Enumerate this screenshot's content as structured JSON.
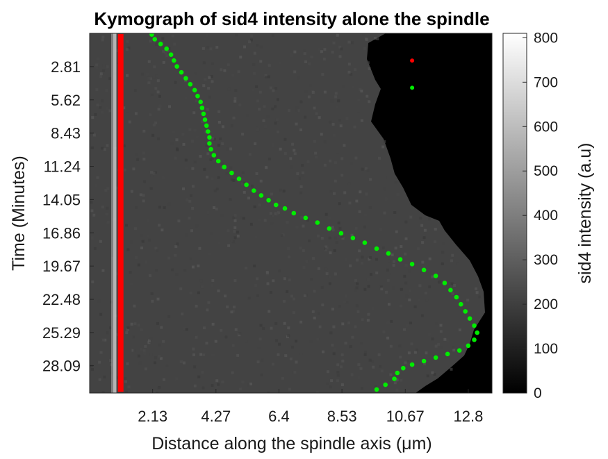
{
  "chart_data": {
    "type": "heatmap",
    "title": "Kymograph of sid4 intensity alone the spindle",
    "xlabel": "Distance along the spindle axis (μm)",
    "ylabel": "Time (Minutes)",
    "xlim": [
      0,
      13.6
    ],
    "ylim": [
      30.4,
      0
    ],
    "x_ticks": [
      "2.13",
      "4.27",
      "6.4",
      "8.53",
      "10.67",
      "12.8"
    ],
    "y_ticks": [
      "2.81",
      "5.62",
      "8.43",
      "11.24",
      "14.05",
      "16.86",
      "19.67",
      "22.48",
      "25.29",
      "28.09"
    ],
    "colorbar": {
      "label": "sid4 intensity (a.u)",
      "ticks": [
        "0",
        "100",
        "200",
        "300",
        "400",
        "500",
        "600",
        "700",
        "800"
      ],
      "range": [
        0,
        810
      ],
      "colormap": "gray"
    },
    "series": [
      {
        "color": "#ff0000",
        "points": [
          [
            1.05,
            0.05
          ],
          [
            1.05,
            3.0
          ],
          [
            1.05,
            6.0
          ],
          [
            1.05,
            9.0
          ],
          [
            1.05,
            12.0
          ],
          [
            1.05,
            15.0
          ],
          [
            1.05,
            18.0
          ],
          [
            1.05,
            21.0
          ],
          [
            1.05,
            24.0
          ],
          [
            1.05,
            27.0
          ],
          [
            1.05,
            30.3
          ]
        ]
      },
      {
        "color": "#00ee00",
        "points": [
          [
            2.1,
            0.1
          ],
          [
            2.2,
            0.5
          ],
          [
            2.4,
            0.9
          ],
          [
            2.6,
            1.3
          ],
          [
            2.75,
            1.8
          ],
          [
            2.85,
            2.3
          ],
          [
            2.95,
            2.8
          ],
          [
            3.1,
            3.3
          ],
          [
            3.25,
            3.8
          ],
          [
            3.4,
            4.3
          ],
          [
            3.55,
            4.8
          ],
          [
            3.65,
            5.3
          ],
          [
            3.75,
            5.8
          ],
          [
            3.8,
            6.3
          ],
          [
            3.85,
            6.8
          ],
          [
            3.9,
            7.3
          ],
          [
            3.95,
            7.8
          ],
          [
            4.0,
            8.3
          ],
          [
            4.05,
            8.8
          ],
          [
            4.05,
            9.3
          ],
          [
            4.1,
            9.8
          ],
          [
            4.2,
            10.3
          ],
          [
            4.35,
            10.8
          ],
          [
            4.55,
            11.3
          ],
          [
            4.8,
            11.8
          ],
          [
            5.05,
            12.3
          ],
          [
            5.3,
            12.8
          ],
          [
            5.55,
            13.3
          ],
          [
            5.8,
            13.7
          ],
          [
            6.05,
            14.1
          ],
          [
            6.3,
            14.5
          ],
          [
            6.6,
            14.8
          ],
          [
            6.9,
            15.2
          ],
          [
            7.3,
            15.6
          ],
          [
            7.7,
            16.0
          ],
          [
            8.1,
            16.5
          ],
          [
            8.5,
            16.9
          ],
          [
            8.9,
            17.3
          ],
          [
            9.3,
            17.7
          ],
          [
            9.7,
            18.2
          ],
          [
            10.1,
            18.6
          ],
          [
            10.5,
            19.1
          ],
          [
            10.9,
            19.5
          ],
          [
            11.3,
            20.0
          ],
          [
            11.7,
            20.5
          ],
          [
            12.0,
            21.1
          ],
          [
            12.2,
            21.7
          ],
          [
            12.4,
            22.3
          ],
          [
            12.55,
            22.9
          ],
          [
            12.7,
            23.5
          ],
          [
            12.85,
            24.1
          ],
          [
            13.0,
            24.7
          ],
          [
            13.1,
            25.3
          ],
          [
            13.0,
            25.9
          ],
          [
            12.8,
            26.4
          ],
          [
            12.5,
            26.8
          ],
          [
            12.1,
            27.1
          ],
          [
            11.7,
            27.4
          ],
          [
            11.3,
            27.7
          ],
          [
            10.9,
            28.0
          ],
          [
            10.6,
            28.3
          ],
          [
            10.4,
            28.7
          ],
          [
            10.3,
            29.2
          ],
          [
            10.0,
            29.7
          ],
          [
            9.7,
            30.1
          ]
        ]
      }
    ],
    "annotations": [
      {
        "color": "#ff0000",
        "x": 10.9,
        "y": 2.3
      },
      {
        "color": "#00ee00",
        "x": 10.9,
        "y": 4.6
      }
    ],
    "grid": false,
    "legend": "none"
  }
}
